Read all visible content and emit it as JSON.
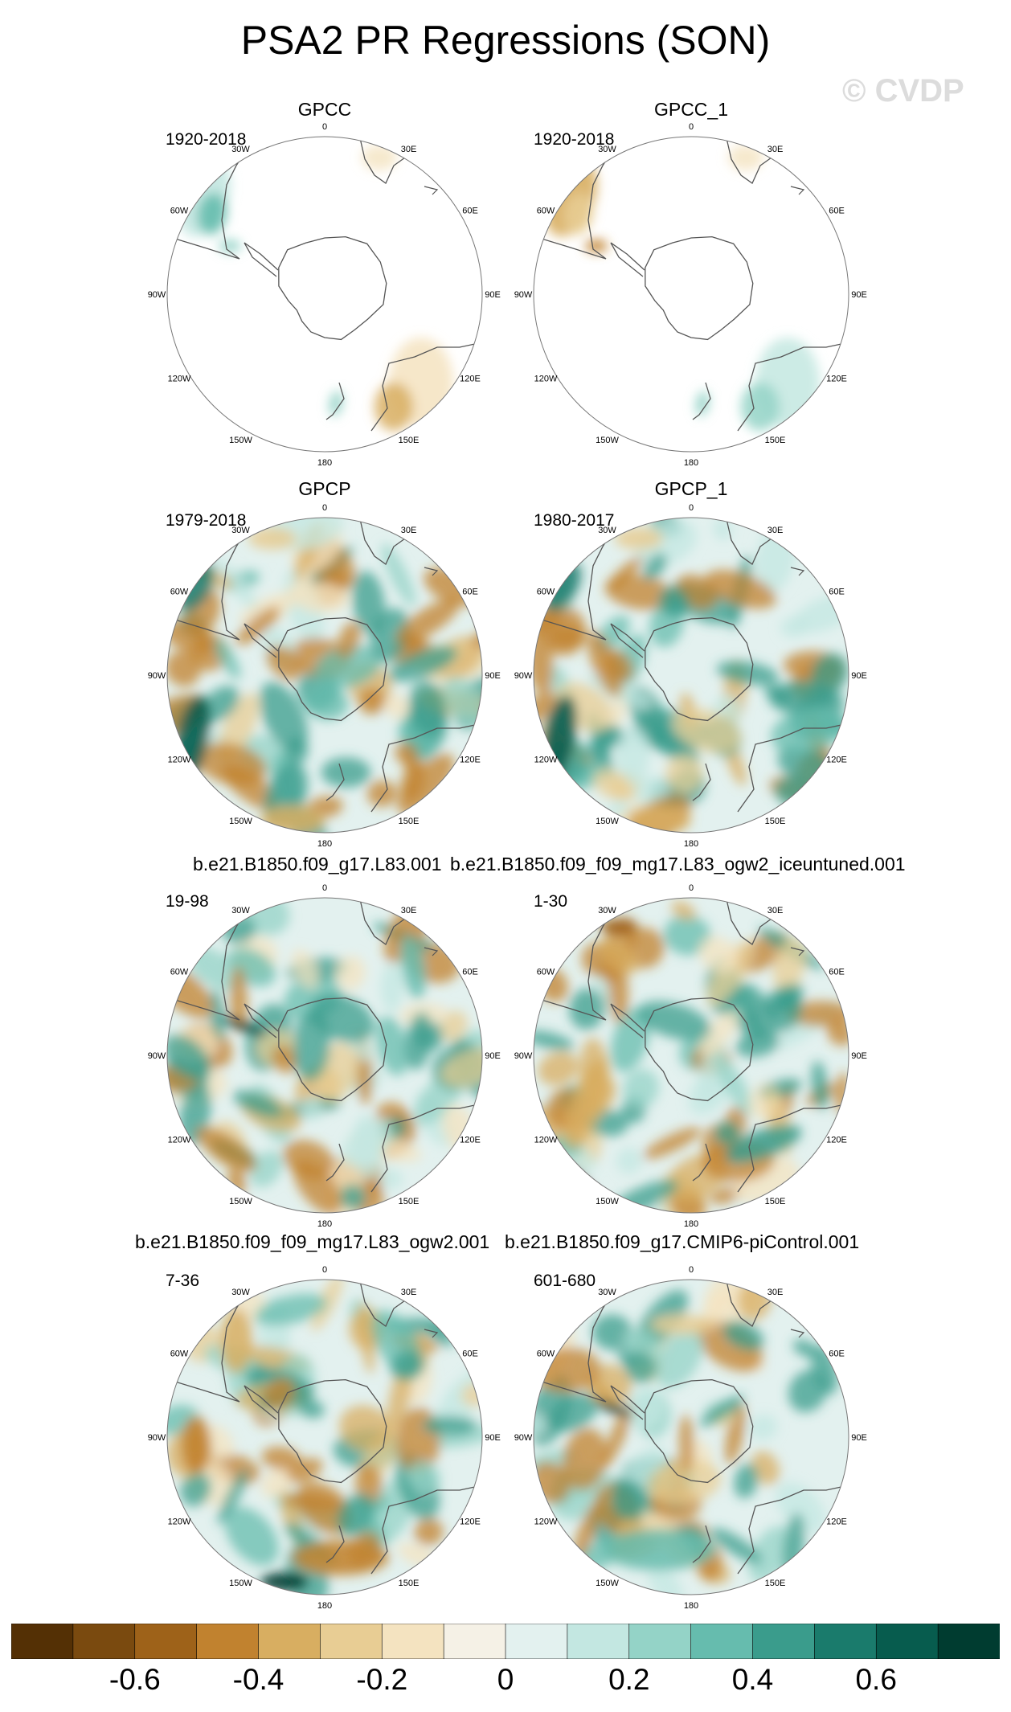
{
  "title": "PSA2 PR Regressions (SON)",
  "watermark": "© CVDP",
  "longitude_labels": [
    "0",
    "30E",
    "60E",
    "90E",
    "120E",
    "150E",
    "180",
    "150W",
    "120W",
    "90W",
    "60W",
    "30W"
  ],
  "model_labels": [
    {
      "text": "b.e21.B1850.f09_g17.L83.001"
    },
    {
      "text": "b.e21.B1850.f09_f09_mg17.L83_ogw2_iceuntuned.001"
    },
    {
      "text": "b.e21.B1850.f09_f09_mg17.L83_ogw2.001"
    },
    {
      "text": "b.e21.B1850.f09_g17.CMIP6-piControl.001"
    }
  ],
  "chart_data": {
    "type": "heatmap",
    "projection": "south-polar-stereographic",
    "variable": "PR",
    "season": "SON",
    "panels": [
      {
        "id": "gpcc",
        "title": "GPCC",
        "period": "1920-2018",
        "coverage": "land-only"
      },
      {
        "id": "gpcc_1",
        "title": "GPCC_1",
        "period": "1920-2018",
        "coverage": "land-only"
      },
      {
        "id": "gpcp",
        "title": "GPCP",
        "period": "1979-2018",
        "coverage": "global"
      },
      {
        "id": "gpcp_1",
        "title": "GPCP_1",
        "period": "1980-2017",
        "coverage": "global"
      },
      {
        "id": "m1",
        "title": "",
        "period": "19-98",
        "coverage": "global"
      },
      {
        "id": "m2",
        "title": "",
        "period": "1-30",
        "coverage": "global"
      },
      {
        "id": "m3",
        "title": "",
        "period": "7-36",
        "coverage": "global"
      },
      {
        "id": "m4",
        "title": "",
        "period": "601-680",
        "coverage": "global"
      }
    ],
    "colorbar": {
      "boundaries": [
        -0.8,
        -0.7,
        -0.6,
        -0.5,
        -0.4,
        -0.3,
        -0.2,
        -0.1,
        0,
        0.1,
        0.2,
        0.3,
        0.4,
        0.5,
        0.6,
        0.7,
        0.8
      ],
      "colors": [
        "#543005",
        "#7a4a0f",
        "#9e6219",
        "#c1822f",
        "#d8ae61",
        "#e8cd94",
        "#f4e3c0",
        "#f5f1e6",
        "#e3f1ef",
        "#c3e7e1",
        "#94d3c7",
        "#66bcae",
        "#3a9c8c",
        "#1a7b6c",
        "#075c4e",
        "#003c30"
      ],
      "tick_labels": [
        "-0.6",
        "-0.4",
        "-0.2",
        "0",
        "0.2",
        "0.4",
        "0.6"
      ],
      "tick_values": [
        -0.6,
        -0.4,
        -0.2,
        0,
        0.2,
        0.4,
        0.6
      ]
    }
  }
}
